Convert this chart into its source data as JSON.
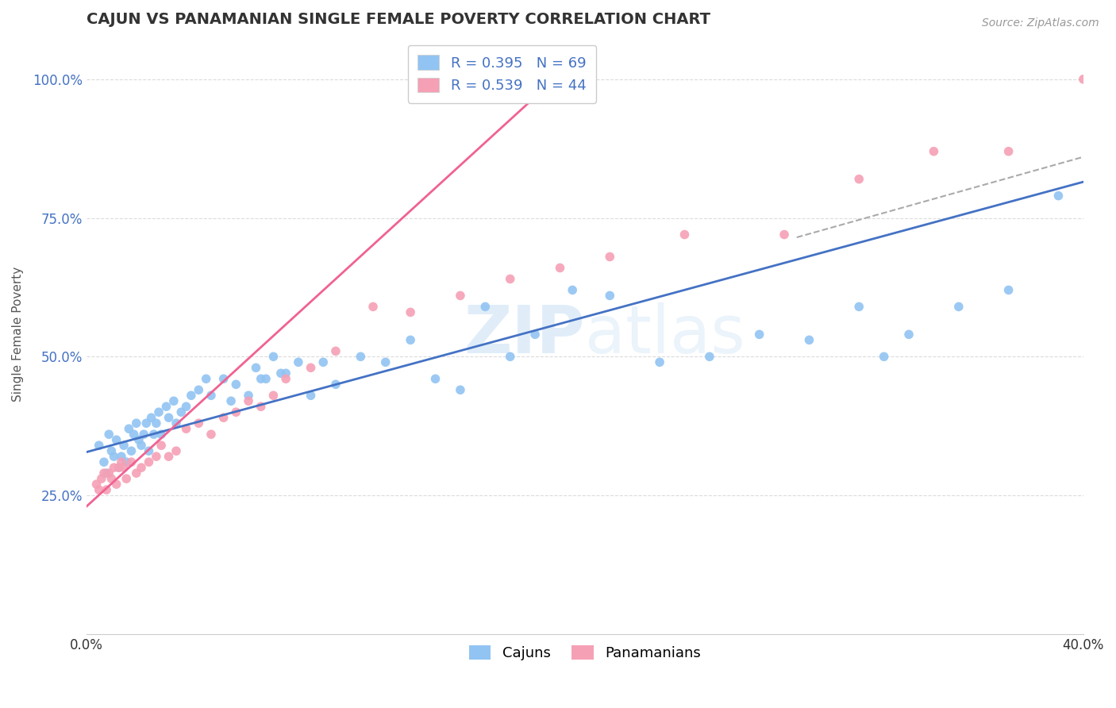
{
  "title": "CAJUN VS PANAMANIAN SINGLE FEMALE POVERTY CORRELATION CHART",
  "source_text": "Source: ZipAtlas.com",
  "ylabel": "Single Female Poverty",
  "xlim": [
    0.0,
    0.4
  ],
  "ylim": [
    0.0,
    1.08
  ],
  "cajun_R": 0.395,
  "cajun_N": 69,
  "panam_R": 0.539,
  "panam_N": 44,
  "cajun_color": "#91c4f2",
  "panam_color": "#f5a0b5",
  "cajun_line_color": "#4472c4",
  "panam_line_color": "#f06292",
  "legend_labels": [
    "Cajuns",
    "Panamanians"
  ],
  "background_color": "#ffffff",
  "grid_color": "#d8d8d8",
  "watermark_color": "#c8dff5",
  "title_color": "#333333",
  "source_color": "#999999",
  "ylabel_color": "#555555",
  "ytick_color": "#4472c4",
  "xtick_color": "#333333",
  "cajun_x": [
    0.005,
    0.007,
    0.008,
    0.009,
    0.01,
    0.011,
    0.012,
    0.013,
    0.014,
    0.015,
    0.016,
    0.017,
    0.018,
    0.019,
    0.02,
    0.021,
    0.022,
    0.023,
    0.024,
    0.025,
    0.026,
    0.027,
    0.028,
    0.029,
    0.03,
    0.032,
    0.033,
    0.035,
    0.036,
    0.038,
    0.04,
    0.042,
    0.045,
    0.048,
    0.05,
    0.055,
    0.058,
    0.06,
    0.065,
    0.068,
    0.07,
    0.072,
    0.075,
    0.078,
    0.08,
    0.085,
    0.09,
    0.095,
    0.1,
    0.11,
    0.12,
    0.13,
    0.14,
    0.15,
    0.16,
    0.17,
    0.18,
    0.195,
    0.21,
    0.23,
    0.25,
    0.27,
    0.29,
    0.31,
    0.32,
    0.33,
    0.35,
    0.37,
    0.39
  ],
  "cajun_y": [
    0.34,
    0.31,
    0.29,
    0.36,
    0.33,
    0.32,
    0.35,
    0.3,
    0.32,
    0.34,
    0.31,
    0.37,
    0.33,
    0.36,
    0.38,
    0.35,
    0.34,
    0.36,
    0.38,
    0.33,
    0.39,
    0.36,
    0.38,
    0.4,
    0.36,
    0.41,
    0.39,
    0.42,
    0.38,
    0.4,
    0.41,
    0.43,
    0.44,
    0.46,
    0.43,
    0.46,
    0.42,
    0.45,
    0.43,
    0.48,
    0.46,
    0.46,
    0.5,
    0.47,
    0.47,
    0.49,
    0.43,
    0.49,
    0.45,
    0.5,
    0.49,
    0.53,
    0.46,
    0.44,
    0.59,
    0.5,
    0.54,
    0.62,
    0.61,
    0.49,
    0.5,
    0.54,
    0.53,
    0.59,
    0.5,
    0.54,
    0.59,
    0.62,
    0.79
  ],
  "panam_x": [
    0.004,
    0.005,
    0.006,
    0.007,
    0.008,
    0.009,
    0.01,
    0.011,
    0.012,
    0.013,
    0.014,
    0.015,
    0.016,
    0.018,
    0.02,
    0.022,
    0.025,
    0.028,
    0.03,
    0.033,
    0.036,
    0.04,
    0.045,
    0.05,
    0.055,
    0.06,
    0.065,
    0.07,
    0.075,
    0.08,
    0.09,
    0.1,
    0.115,
    0.13,
    0.15,
    0.17,
    0.19,
    0.21,
    0.24,
    0.28,
    0.31,
    0.34,
    0.37,
    0.4
  ],
  "panam_y": [
    0.27,
    0.26,
    0.28,
    0.29,
    0.26,
    0.29,
    0.28,
    0.3,
    0.27,
    0.3,
    0.31,
    0.3,
    0.28,
    0.31,
    0.29,
    0.3,
    0.31,
    0.32,
    0.34,
    0.32,
    0.33,
    0.37,
    0.38,
    0.36,
    0.39,
    0.4,
    0.42,
    0.41,
    0.43,
    0.46,
    0.48,
    0.51,
    0.59,
    0.58,
    0.61,
    0.64,
    0.66,
    0.68,
    0.72,
    0.72,
    0.82,
    0.87,
    0.87,
    1.0
  ],
  "cajun_line_x0": 0.0,
  "cajun_line_y0": 0.328,
  "cajun_line_x1": 0.4,
  "cajun_line_y1": 0.815,
  "panam_line_x0": 0.0,
  "panam_line_y0": 0.23,
  "panam_line_x1": 0.2,
  "panam_line_y1": 1.05,
  "dash_line_x0": 0.285,
  "dash_line_y0": 0.715,
  "dash_line_x1": 0.4,
  "dash_line_y1": 0.86
}
